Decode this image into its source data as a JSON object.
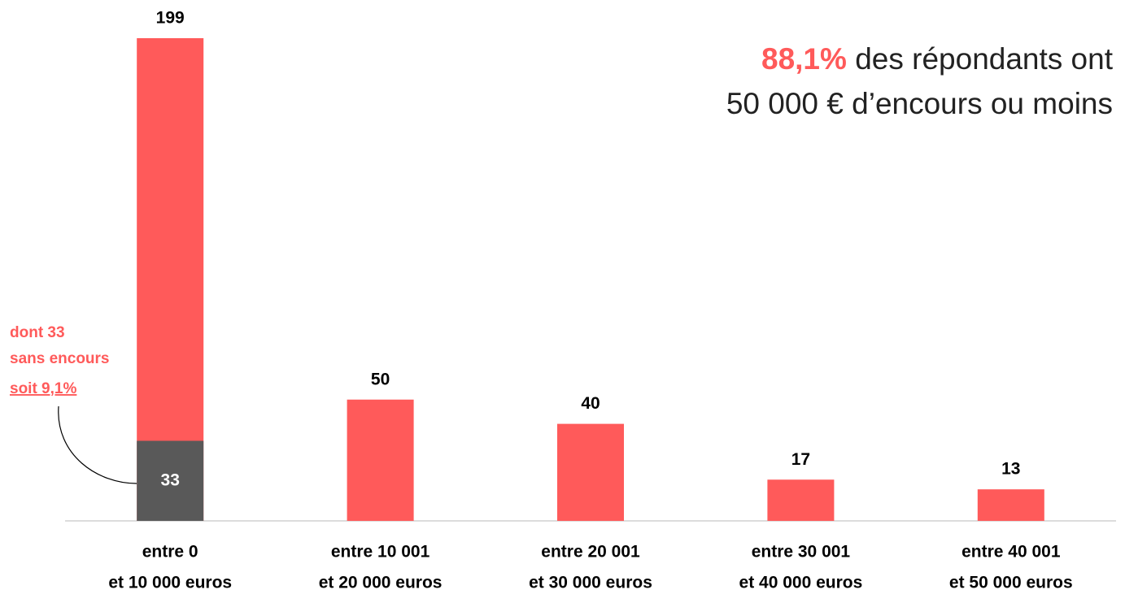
{
  "chart_data": {
    "type": "bar",
    "title": {
      "highlight": "88,1%",
      "line1": " des répondants ont",
      "line2": "50 000 € d’encours ou moins"
    },
    "categories": [
      [
        "entre 0",
        "et 10 000 euros"
      ],
      [
        "entre 10 001",
        "et 20 000 euros"
      ],
      [
        "entre 20 001",
        "et 30 000 euros"
      ],
      [
        "entre 30 001",
        "et 40 000 euros"
      ],
      [
        "entre 40 001",
        "et 50 000 euros"
      ]
    ],
    "values": [
      199,
      50,
      40,
      17,
      13
    ],
    "color": "#ff5a5a",
    "subset": {
      "values": [
        33,
        null,
        null,
        null,
        null
      ],
      "color": "#595959"
    },
    "annotation": [
      "dont 33",
      "sans encours",
      "soit 9,1%"
    ],
    "ylim": [
      0,
      200
    ]
  }
}
